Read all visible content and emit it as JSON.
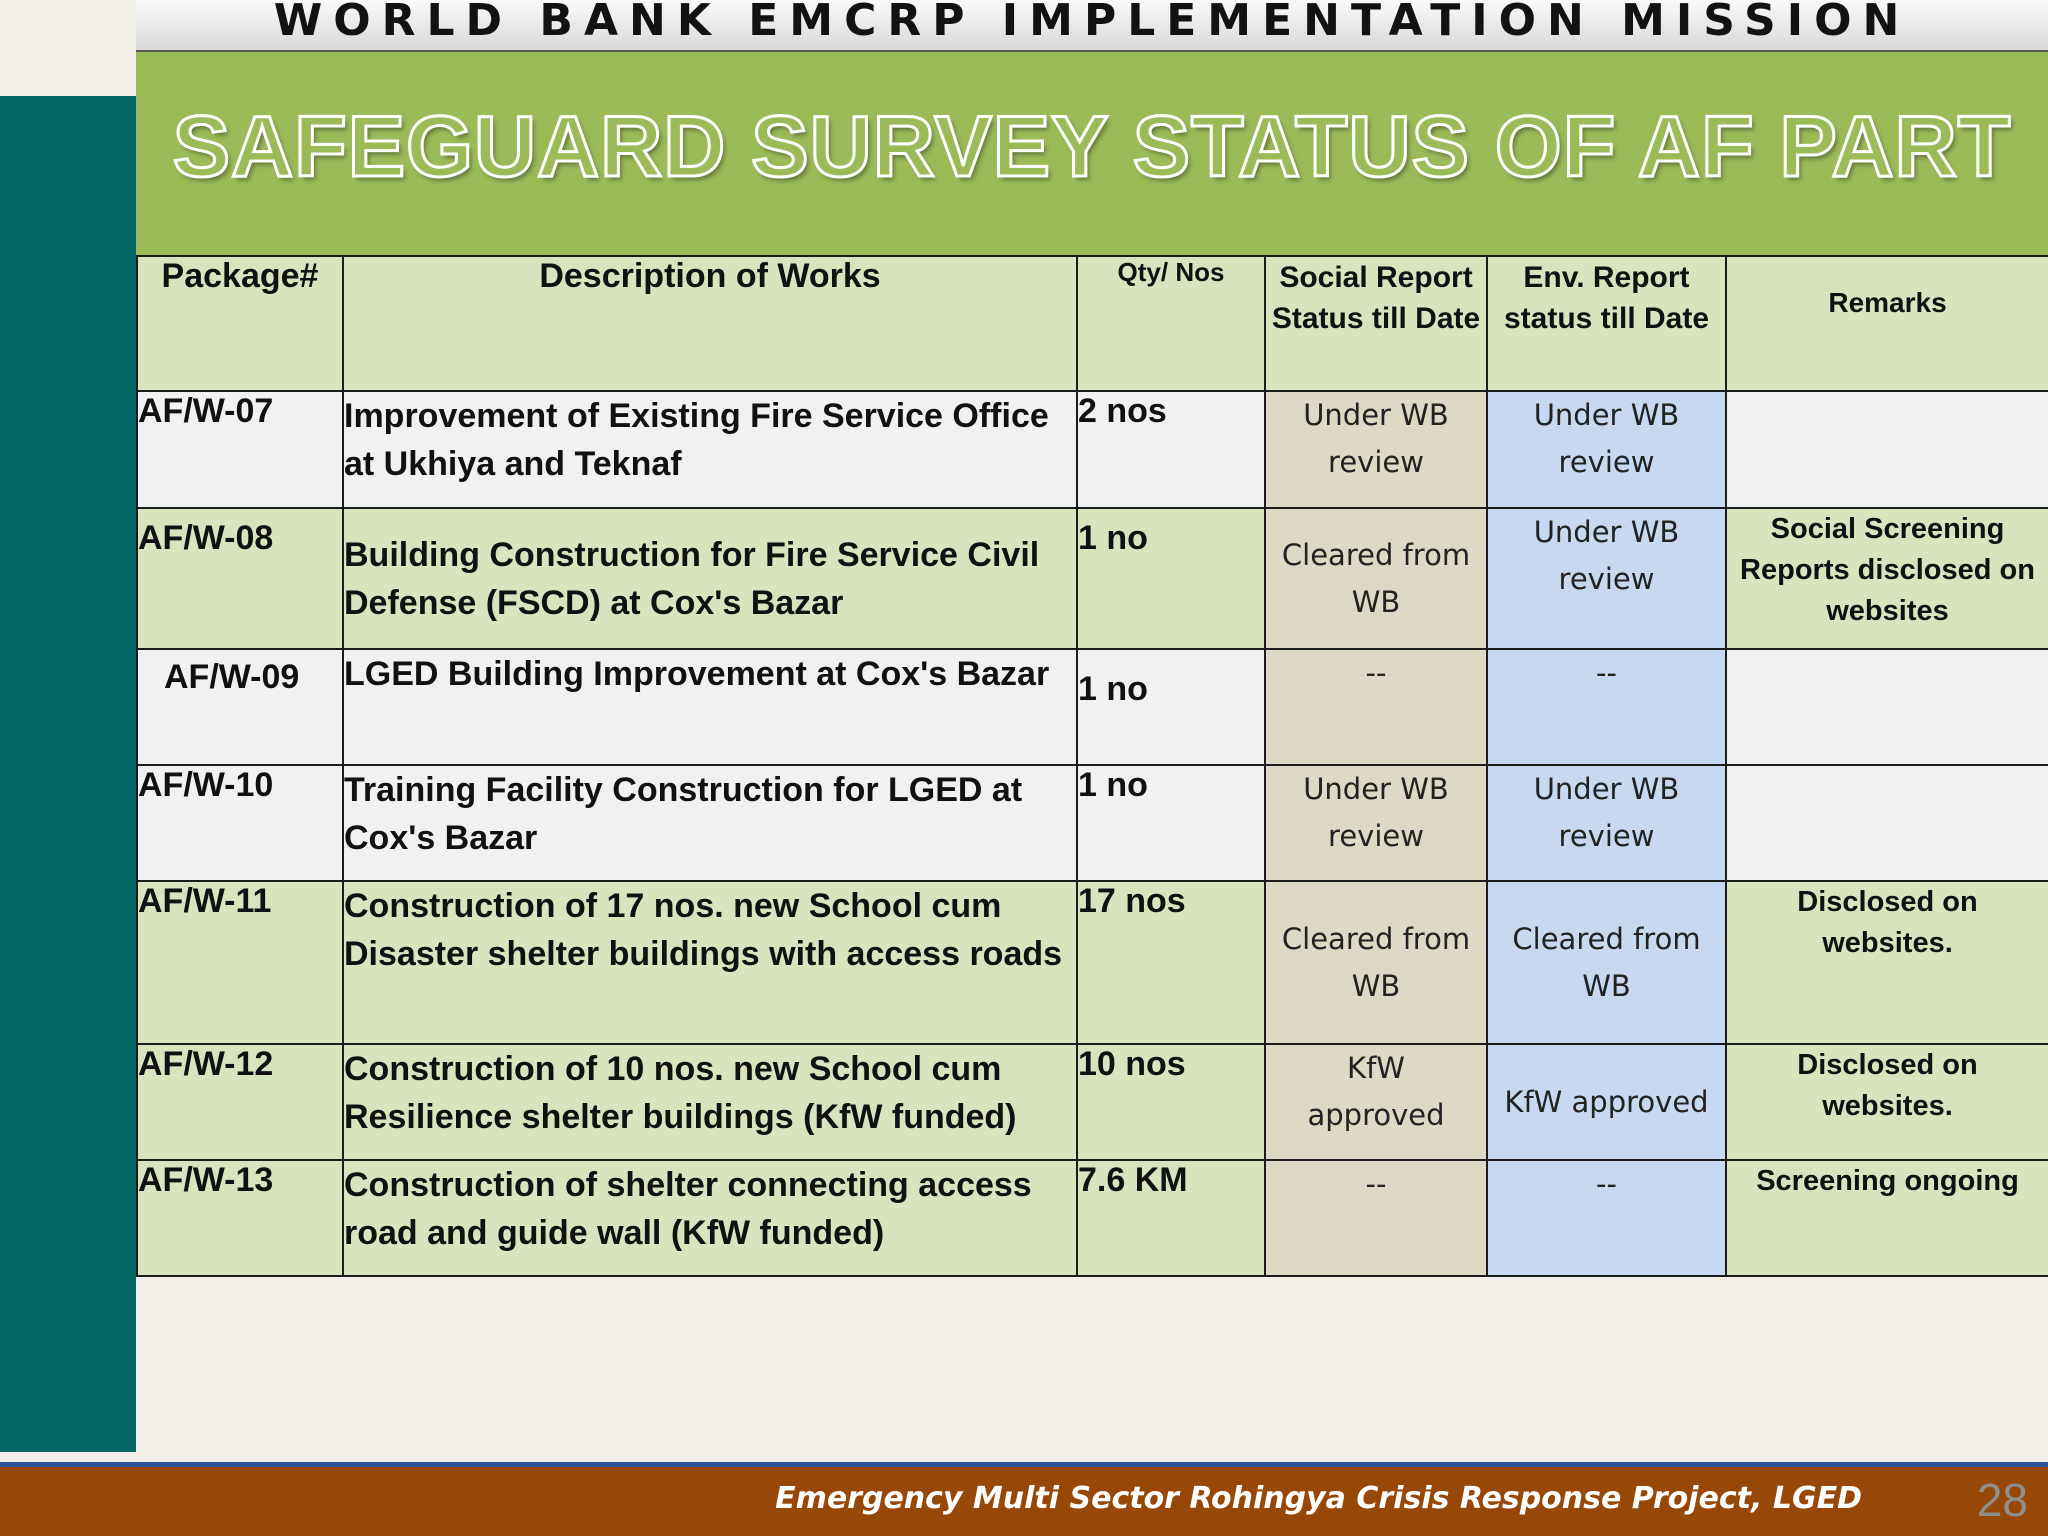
{
  "header": {
    "banner": "WORLD BANK EMCRP IMPLEMENTATION MISSION",
    "title": "SAFEGUARD SURVEY STATUS OF AF PART"
  },
  "table": {
    "columns": {
      "package": "Package#",
      "description": "Description of Works",
      "qty": "Qty/ Nos",
      "social_line1": "Social Report",
      "social_line2": "Status till Date",
      "env_line1": "Env. Report",
      "env_line2": "status till Date",
      "remarks": "Remarks"
    },
    "rows": [
      {
        "package": "AF/W-07",
        "description": "Improvement of Existing Fire Service Office at Ukhiya and Teknaf",
        "qty": "2 nos",
        "social": [
          "Under WB",
          "review"
        ],
        "env": [
          "Under WB",
          "review"
        ],
        "remarks": ""
      },
      {
        "package": "AF/W-08",
        "description": "Building Construction for Fire Service Civil Defense (FSCD) at Cox's Bazar",
        "qty": "1 no",
        "social": [
          "Cleared from",
          "WB"
        ],
        "env": [
          "Under WB",
          "review"
        ],
        "remarks": [
          "Social Screening",
          "Reports disclosed on",
          "websites"
        ]
      },
      {
        "package": "AF/W-09",
        "description": "LGED Building Improvement at Cox's Bazar",
        "qty": "1 no",
        "social": [
          "--"
        ],
        "env": [
          "--"
        ],
        "remarks": ""
      },
      {
        "package": "AF/W-10",
        "description": "Training Facility Construction for LGED at Cox's Bazar",
        "qty": "1 no",
        "social": [
          "Under WB",
          "review"
        ],
        "env": [
          "Under WB",
          "review"
        ],
        "remarks": ""
      },
      {
        "package": "AF/W-11",
        "description": "Construction of 17 nos. new School cum Disaster shelter buildings with access roads",
        "qty": "17 nos",
        "social": [
          "Cleared from",
          "WB"
        ],
        "env": [
          "Cleared from",
          "WB"
        ],
        "remarks": [
          "Disclosed on",
          "websites."
        ]
      },
      {
        "package": "AF/W-12",
        "description": "Construction of 10 nos. new School cum Resilience shelter buildings (KfW funded)",
        "qty": "10 nos",
        "social": [
          "KfW",
          "approved"
        ],
        "env": [
          "KfW approved"
        ],
        "remarks": [
          "Disclosed on",
          "websites."
        ]
      },
      {
        "package": "AF/W-13",
        "description": "Construction of shelter connecting access road and guide wall (KfW funded)",
        "qty": "7.6 KM",
        "social": [
          "--"
        ],
        "env": [
          "--"
        ],
        "remarks": [
          "Screening ongoing"
        ]
      }
    ]
  },
  "footer": {
    "project": "Emergency Multi Sector Rohingya Crisis Response Project, LGED",
    "page_number": "28"
  },
  "colors": {
    "teal_bar": "#046766",
    "title_green": "#9bbb59",
    "light_green": "#d7e4bd",
    "social_tan": "#ddd9c4",
    "env_blue": "#c6d9f1",
    "footer_brown": "#974706"
  }
}
